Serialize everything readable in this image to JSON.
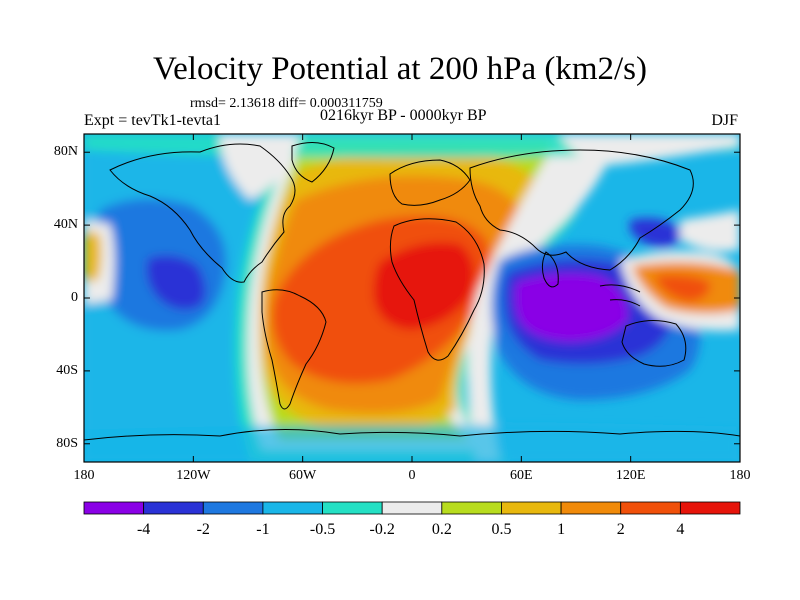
{
  "title": "Velocity Potential at 200 hPa (km2/s)",
  "stats": "rmsd= 2.13618 diff= 0.000311759",
  "left_label": "Expt = tevTk1-tevta1",
  "center_label": "0216kyr BP - 0000kyr BP",
  "right_label": "DJF",
  "map_data": {
    "type": "filled-contour-map",
    "variable": "Velocity Potential at 200 hPa",
    "units": "km2/s",
    "season": "DJF",
    "lon_range": [
      -180,
      180
    ],
    "lat_range": [
      -90,
      90
    ],
    "y_ticks": [
      {
        "lat": 80,
        "label": "80N"
      },
      {
        "lat": 40,
        "label": "40N"
      },
      {
        "lat": 0,
        "label": "0"
      },
      {
        "lat": -40,
        "label": "40S"
      },
      {
        "lat": -80,
        "label": "80S"
      }
    ],
    "x_ticks": [
      {
        "lon": -180,
        "label": "180"
      },
      {
        "lon": -120,
        "label": "120W"
      },
      {
        "lon": -60,
        "label": "60W"
      },
      {
        "lon": 0,
        "label": "0"
      },
      {
        "lon": 60,
        "label": "60E"
      },
      {
        "lon": 120,
        "label": "120E"
      },
      {
        "lon": 180,
        "label": "180"
      }
    ],
    "colorbar": {
      "colors": [
        "#8a00e6",
        "#2a32d6",
        "#1e78e0",
        "#1ab6e8",
        "#24e0c4",
        "#ececec",
        "#b8dc1e",
        "#e8b80e",
        "#f08a0a",
        "#f0500a",
        "#e6140a"
      ],
      "labels": [
        "-4",
        "-2",
        "-1",
        "-0.5",
        "-0.2",
        "0.2",
        "0.5",
        "1",
        "2",
        "4"
      ]
    }
  }
}
